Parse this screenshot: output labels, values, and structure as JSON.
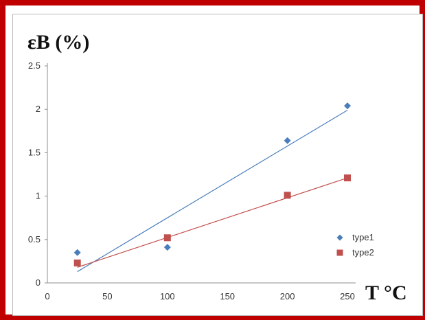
{
  "chart_data": {
    "type": "scatter",
    "xlabel": "T °C",
    "ylabel": "εB (%)",
    "xlim": [
      0,
      250
    ],
    "ylim": [
      0,
      2.5
    ],
    "x_ticks": [
      "0",
      "50",
      "100",
      "150",
      "200",
      "250"
    ],
    "y_ticks": [
      "0",
      "0.5",
      "1",
      "1.5",
      "2",
      "2.5"
    ],
    "legend_position": "right",
    "grid": false,
    "series": [
      {
        "name": "type1",
        "marker": "diamond",
        "color": "#4a7ebb",
        "x": [
          25,
          100,
          200,
          250
        ],
        "y": [
          0.35,
          0.41,
          1.64,
          2.04
        ],
        "trendline": {
          "x": [
            25,
            250
          ],
          "y": [
            0.13,
            1.99
          ]
        }
      },
      {
        "name": "type2",
        "marker": "square",
        "color": "#c0504d",
        "x": [
          25,
          100,
          200,
          250
        ],
        "y": [
          0.23,
          0.52,
          1.01,
          1.21
        ],
        "trendline": {
          "x": [
            25,
            250
          ],
          "y": [
            0.18,
            1.21
          ]
        }
      }
    ]
  }
}
